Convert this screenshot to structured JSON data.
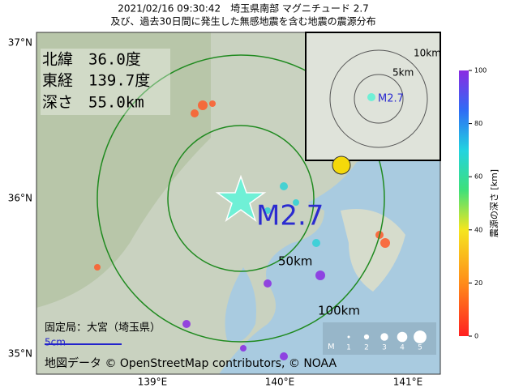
{
  "header": {
    "title_line1": "2021/02/16 09:30:42　埼玉県南部 マグニチュード 2.7",
    "title_line2": "及び、過去30日間に発生した無感地震を含む地震の震源分布"
  },
  "info": {
    "lat": "北緯　36.0度",
    "lon": "東経　139.7度",
    "depth": "深さ　55.0km"
  },
  "map": {
    "magnitude_label": "M2.7",
    "ring_50": "50km",
    "ring_100": "100km",
    "lat_labels": [
      "37°N",
      "36°N",
      "35°N"
    ],
    "lon_labels": [
      "139°E",
      "140°E",
      "141°E"
    ],
    "station": "固定局：大宮（埼玉県）",
    "scale_label": "5cm",
    "credit": "地図データ © OpenStreetMap contributors, © NOAA"
  },
  "inset": {
    "ring_5": "5km",
    "ring_10": "10km",
    "magnitude_label": "M2.7"
  },
  "magnitude_legend": {
    "title": "M",
    "labels": [
      "1",
      "2",
      "3",
      "4",
      "5"
    ]
  },
  "colorbar": {
    "label": "震源の深さ [km]",
    "lim": [
      0,
      100
    ],
    "ticks": [
      0,
      20,
      40,
      60,
      80,
      100
    ]
  }
}
